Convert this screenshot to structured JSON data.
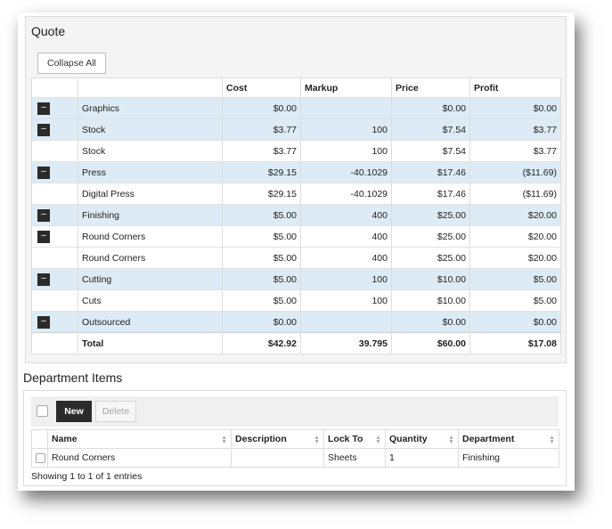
{
  "quote": {
    "title": "Quote",
    "collapse_all_label": "Collapse All",
    "columns": [
      "",
      "",
      "Cost",
      "Markup",
      "Price",
      "Profit"
    ],
    "rows": [
      {
        "toggle": "–",
        "name": "Graphics",
        "cost": "$0.00",
        "markup": "",
        "price": "$0.00",
        "profit": "$0.00",
        "highlight": true
      },
      {
        "toggle": "–",
        "name": "Stock",
        "cost": "$3.77",
        "markup": "100",
        "price": "$7.54",
        "profit": "$3.77",
        "highlight": true
      },
      {
        "toggle": "",
        "name": "Stock",
        "cost": "$3.77",
        "markup": "100",
        "price": "$7.54",
        "profit": "$3.77",
        "highlight": false
      },
      {
        "toggle": "–",
        "name": "Press",
        "cost": "$29.15",
        "markup": "-40.1029",
        "price": "$17.46",
        "profit": "($11.69)",
        "highlight": true
      },
      {
        "toggle": "",
        "name": "Digital Press",
        "cost": "$29.15",
        "markup": "-40.1029",
        "price": "$17.46",
        "profit": "($11.69)",
        "highlight": false
      },
      {
        "toggle": "–",
        "name": "Finishing",
        "cost": "$5.00",
        "markup": "400",
        "price": "$25.00",
        "profit": "$20.00",
        "highlight": true
      },
      {
        "toggle": "–",
        "name": "Round Corners",
        "cost": "$5.00",
        "markup": "400",
        "price": "$25.00",
        "profit": "$20.00",
        "highlight": false
      },
      {
        "toggle": "",
        "name": "Round Corners",
        "cost": "$5.00",
        "markup": "400",
        "price": "$25.00",
        "profit": "$20.00",
        "highlight": false
      },
      {
        "toggle": "–",
        "name": "Cutting",
        "cost": "$5.00",
        "markup": "100",
        "price": "$10.00",
        "profit": "$5.00",
        "highlight": true
      },
      {
        "toggle": "",
        "name": "Cuts",
        "cost": "$5.00",
        "markup": "100",
        "price": "$10.00",
        "profit": "$5.00",
        "highlight": false
      },
      {
        "toggle": "–",
        "name": "Outsourced",
        "cost": "$0.00",
        "markup": "",
        "price": "$0.00",
        "profit": "$0.00",
        "highlight": true
      }
    ],
    "total": {
      "name": "Total",
      "cost": "$42.92",
      "markup": "39.795",
      "price": "$60.00",
      "profit": "$17.08"
    }
  },
  "department": {
    "title": "Department Items",
    "new_label": "New",
    "delete_label": "Delete",
    "columns": [
      "Name",
      "Description",
      "Lock To",
      "Quantity",
      "Department"
    ],
    "rows": [
      {
        "name": "Round Corners",
        "description": "",
        "lock_to": "Sheets",
        "quantity": "1",
        "department": "Finishing"
      }
    ],
    "showing_text": "Showing 1 to 1 of 1 entries"
  },
  "colors": {
    "highlight_row": "#dcebf5",
    "dark_button": "#2b2b2b"
  }
}
